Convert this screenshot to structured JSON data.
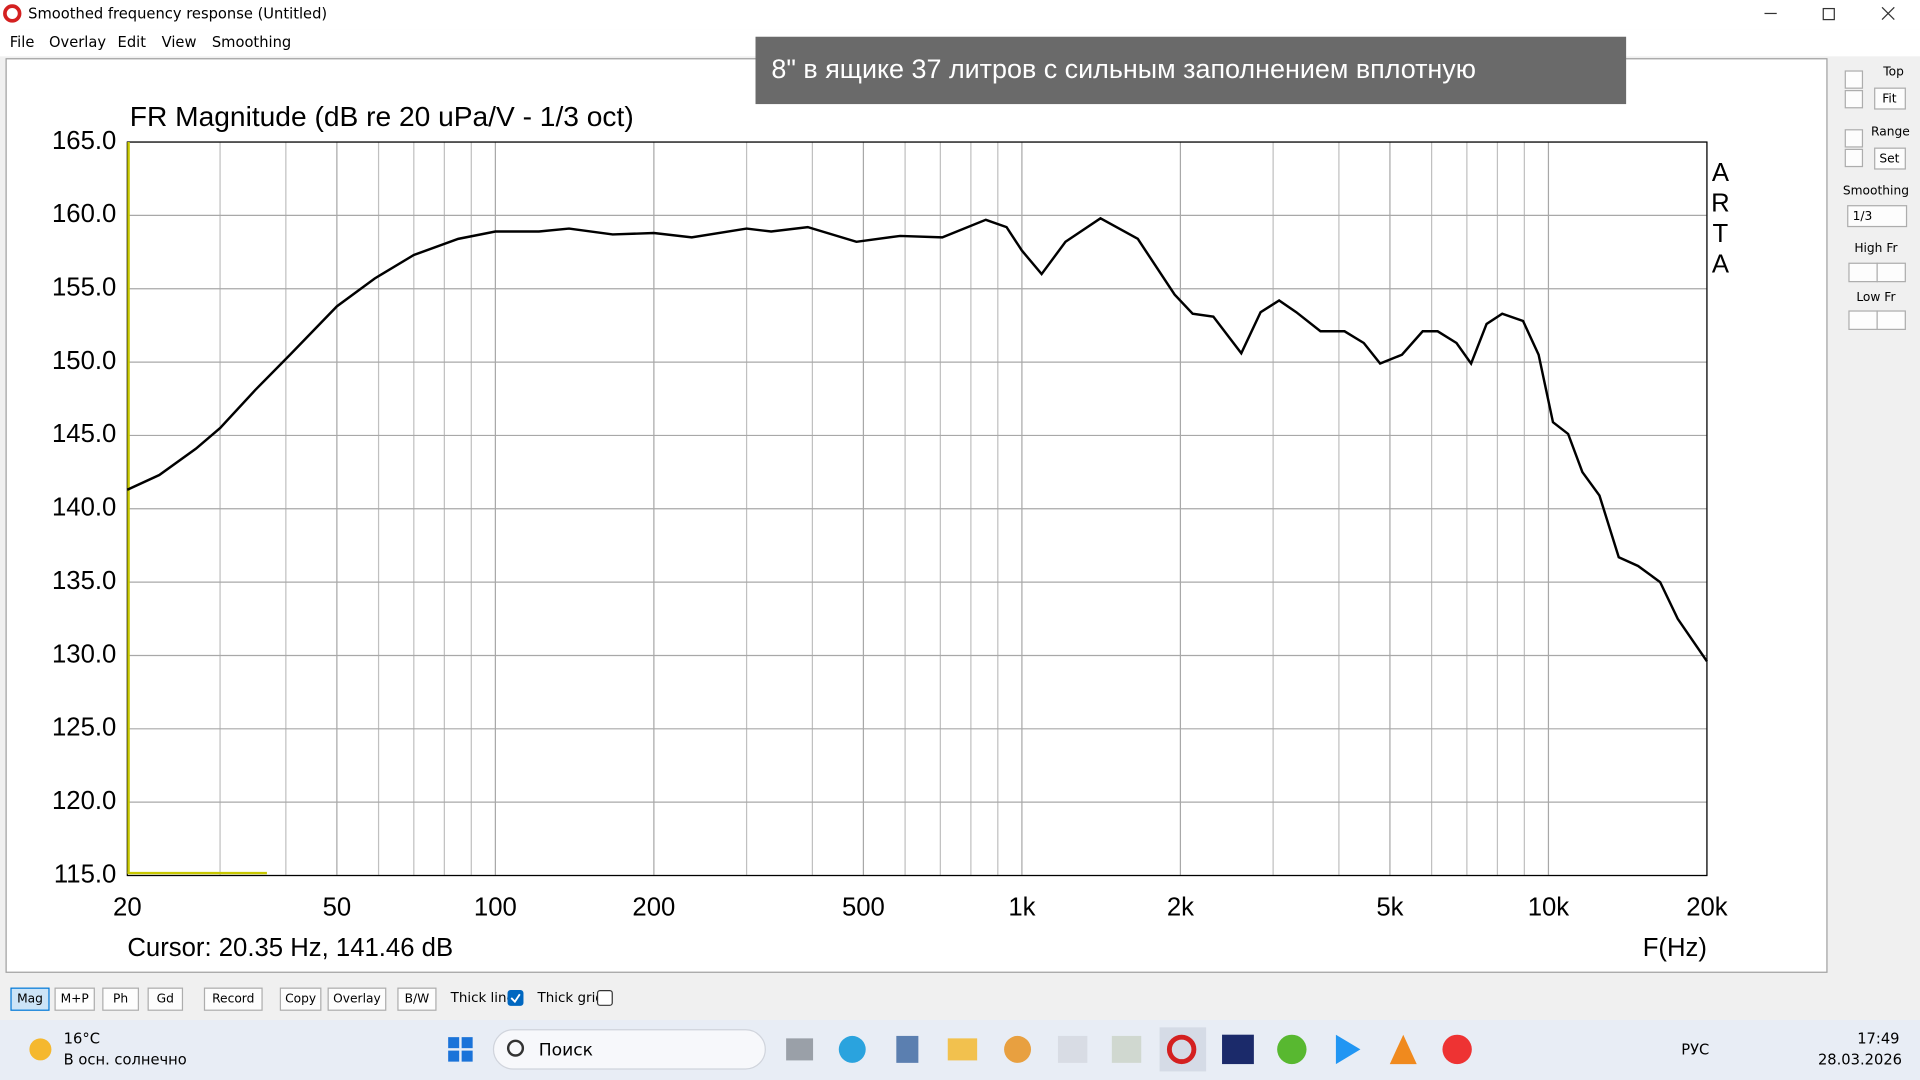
{
  "window": {
    "title": "Smoothed frequency response (Untitled)",
    "menu": [
      "File",
      "Overlay",
      "Edit",
      "View",
      "Smoothing"
    ]
  },
  "banner": "8\" в ящике 37 литров с сильным заполнением вплотную",
  "chart_data": {
    "type": "line",
    "title": "FR Magnitude (dB re 20 uPa/V - 1/3 oct)",
    "x": [
      20,
      23,
      27,
      30,
      35,
      41,
      50,
      59,
      70,
      85,
      100,
      121,
      138,
      167,
      200,
      236,
      300,
      334,
      392,
      485,
      587,
      706,
      854,
      935,
      1000,
      1090,
      1210,
      1410,
      1660,
      1950,
      2110,
      2310,
      2610,
      2840,
      3080,
      3320,
      3690,
      4100,
      4460,
      4790,
      5270,
      5770,
      6160,
      6690,
      7130,
      7630,
      8170,
      8950,
      9580,
      10200,
      10900,
      11600,
      12500,
      13600,
      14800,
      16300,
      17600,
      20000
    ],
    "values": [
      141.3,
      142.3,
      144.1,
      145.5,
      148.1,
      150.6,
      153.8,
      155.7,
      157.3,
      158.4,
      158.9,
      158.9,
      159.1,
      158.7,
      158.8,
      158.5,
      159.1,
      158.9,
      159.2,
      158.2,
      158.6,
      158.5,
      159.7,
      159.2,
      157.6,
      156.0,
      158.2,
      159.8,
      158.4,
      154.6,
      153.3,
      153.1,
      150.6,
      153.4,
      154.2,
      153.4,
      152.1,
      152.1,
      151.3,
      149.9,
      150.5,
      152.1,
      152.1,
      151.3,
      149.9,
      152.6,
      153.3,
      152.8,
      150.5,
      145.9,
      145.1,
      142.5,
      140.9,
      136.7,
      136.1,
      135.0,
      132.5,
      129.6
    ],
    "color": "#000000",
    "log_x": true,
    "grid": true,
    "xlim": [
      20,
      20000
    ],
    "ylim": [
      115,
      165
    ],
    "xticks": [
      20,
      50,
      100,
      200,
      500,
      {
        "value": 1000,
        "label": "1k"
      },
      {
        "value": 2000,
        "label": "2k"
      },
      {
        "value": 5000,
        "label": "5k"
      },
      {
        "value": 10000,
        "label": "10k"
      },
      {
        "value": 20000,
        "label": "20k"
      }
    ],
    "x_minor_grid": [
      30,
      40,
      60,
      70,
      80,
      90,
      300,
      400,
      600,
      700,
      800,
      900,
      3000,
      4000,
      6000,
      7000,
      8000,
      9000
    ],
    "yticks": [
      {
        "value": 115,
        "label": "115.0"
      },
      {
        "value": 120,
        "label": "120.0"
      },
      {
        "value": 125,
        "label": "125.0"
      },
      {
        "value": 130,
        "label": "130.0"
      },
      {
        "value": 135,
        "label": "135.0"
      },
      {
        "value": 140,
        "label": "140.0"
      },
      {
        "value": 145,
        "label": "145.0"
      },
      {
        "value": 150,
        "label": "150.0"
      },
      {
        "value": 155,
        "label": "155.0"
      },
      {
        "value": 160,
        "label": "160.0"
      },
      {
        "value": 165,
        "label": "165.0"
      }
    ],
    "watermark": "ARTA",
    "cursor": "Cursor: 20.35 Hz, 141.46 dB",
    "xlabel": "F(Hz)"
  },
  "side_panel": {
    "top": "Top",
    "fit": "Fit",
    "range": "Range",
    "set": "Set",
    "smoothing": "Smoothing",
    "smoothing_value": "1/3",
    "high_fr": "High Fr",
    "low_fr": "Low Fr"
  },
  "toolbar": {
    "buttons": [
      "Mag",
      "M+P",
      "Ph",
      "Gd",
      "Record",
      "Copy",
      "Overlay",
      "B/W"
    ],
    "checkboxes": [
      {
        "label": "Thick line",
        "checked": true
      },
      {
        "label": "Thick grid",
        "checked": false
      }
    ]
  },
  "taskbar": {
    "temperature": "16°C",
    "weather": "В осн. солнечно",
    "search": "Поиск",
    "language": "РУС",
    "time": "17:49",
    "date": "28.03.2026"
  }
}
